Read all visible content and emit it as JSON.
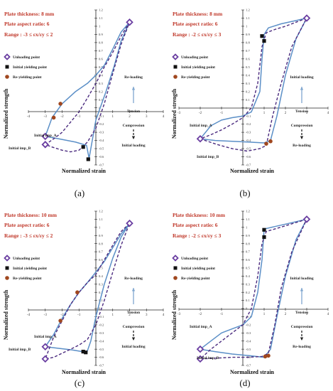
{
  "colors": {
    "solid": "#5b8fc7",
    "dashed": "#4b2b7f",
    "unload_marker": "#6a3ea1",
    "yield_marker": "#111111",
    "reyield_marker": "#a0471f",
    "info_text": "#c0392b",
    "axis": "#222222",
    "arrow": "#7fa6cf"
  },
  "chart_data": [
    {
      "type": "line",
      "panel_label": "(a)",
      "info": {
        "thickness": "Plate thickness: 8 mm",
        "aspect": "Plate aspect ratio: 6",
        "range": "Range : -3 ≤ εx/εy ≤ 2"
      },
      "xlabel": "Normalized strain",
      "ylabel": "Normalized strength",
      "xlim": [
        -4,
        4
      ],
      "ylim": [
        -0.7,
        1.2
      ],
      "xticks": [
        -4,
        -3,
        -2,
        -1,
        0,
        1,
        2,
        3,
        4
      ],
      "yticks": [
        -0.7,
        -0.6,
        -0.5,
        -0.4,
        -0.3,
        -0.2,
        -0.1,
        0,
        0.1,
        0.2,
        0.3,
        0.4,
        0.5,
        0.6,
        0.7,
        0.8,
        0.9,
        1,
        1.1,
        1.2
      ],
      "legend": [
        "Unloading point",
        "Initial yielding point",
        "Re-yielding point"
      ],
      "legend_position": "left",
      "series": [
        {
          "style": "solid",
          "x": [
            2,
            1.5,
            1,
            0.5,
            0,
            -0.5,
            -1.2,
            -2,
            -2.6,
            -3,
            -2.2,
            -1.2,
            -0.55,
            -0.4,
            0,
            0.6,
            1.1,
            1.5,
            2
          ],
          "y": [
            1.05,
            0.93,
            0.72,
            0.52,
            0.4,
            0.3,
            0.2,
            0.05,
            -0.12,
            -0.35,
            -0.38,
            -0.42,
            -0.46,
            -0.62,
            -0.15,
            0.2,
            0.52,
            0.82,
            1.05
          ]
        },
        {
          "style": "dashed",
          "x": [
            2,
            1.5,
            1,
            0.5,
            0,
            -0.5,
            -1,
            -1.6,
            -2,
            -2.5,
            -3,
            -2.6,
            -2,
            -1.5,
            -1,
            -0.5,
            0,
            0.5,
            1,
            1.5,
            2
          ],
          "y": [
            1.05,
            0.88,
            0.68,
            0.5,
            0.3,
            0.12,
            -0.05,
            -0.2,
            -0.3,
            -0.38,
            -0.45,
            -0.48,
            -0.52,
            -0.54,
            -0.52,
            -0.42,
            -0.25,
            0.05,
            0.42,
            0.78,
            1.05
          ]
        }
      ],
      "unloading_points": [
        {
          "x": 2,
          "y": 1.05
        },
        {
          "x": -3,
          "y": -0.35
        },
        {
          "x": -3,
          "y": -0.45
        }
      ],
      "initial_yielding_points": [
        {
          "x": -0.75,
          "y": -0.48
        },
        {
          "x": -0.45,
          "y": -0.63
        }
      ],
      "reyielding_points": [
        {
          "x": -2.5,
          "y": -0.12
        },
        {
          "x": -2.1,
          "y": 0.05
        }
      ],
      "annotations": {
        "imp_a": "Initial imp_A",
        "imp_b": "Initial imp_B",
        "reloading": "Re-loading",
        "tension": "Tension",
        "compression": "Compression",
        "initial_loading": "Initial loading"
      }
    },
    {
      "type": "line",
      "panel_label": "(b)",
      "info": {
        "thickness": "Plate thickness: 8 mm",
        "aspect": "Plate aspect ratio: 6",
        "range": "Range : -2 ≤ εx/εy ≤ 3"
      },
      "xlabel": "Normalized strain",
      "ylabel": "Normalized strength",
      "xlim": [
        -3,
        4
      ],
      "ylim": [
        -0.7,
        1.2
      ],
      "xticks": [
        -3,
        -2,
        -1,
        0,
        1,
        2,
        3,
        4
      ],
      "yticks": [
        -0.7,
        -0.6,
        -0.5,
        -0.4,
        -0.3,
        -0.2,
        -0.1,
        0,
        0.1,
        0.2,
        0.3,
        0.4,
        0.5,
        0.6,
        0.7,
        0.8,
        0.9,
        1,
        1.1,
        1.2
      ],
      "legend": [
        "Unloading point",
        "Initial yielding point",
        "Re-yielding point"
      ],
      "legend_position": "left",
      "series": [
        {
          "style": "solid",
          "x": [
            3,
            2.5,
            1.8,
            1.2,
            1.0,
            0.9,
            0.8,
            0.4,
            0,
            -0.5,
            -1,
            -1.5,
            -2,
            -1.3,
            -0.5,
            0.3,
            1.0,
            1.3,
            1.6,
            2,
            2.5,
            3
          ],
          "y": [
            1.1,
            1.07,
            1.03,
            0.98,
            0.9,
            0.6,
            0.2,
            -0.05,
            -0.1,
            -0.12,
            -0.15,
            -0.22,
            -0.38,
            -0.4,
            -0.41,
            -0.42,
            -0.43,
            -0.4,
            -0.1,
            0.4,
            0.85,
            1.1
          ]
        },
        {
          "style": "dashed",
          "x": [
            3,
            2.5,
            2,
            1.5,
            1.1,
            0.9,
            0.7,
            0.4,
            0,
            -0.5,
            -1,
            -1.5,
            -2,
            -1.2,
            -0.5,
            0.2,
            0.8,
            1.1,
            1.4,
            1.8,
            2.3,
            3
          ],
          "y": [
            1.1,
            1.05,
            1.0,
            0.96,
            0.92,
            0.75,
            0.3,
            0.0,
            -0.12,
            -0.2,
            -0.27,
            -0.33,
            -0.38,
            -0.45,
            -0.5,
            -0.53,
            -0.5,
            -0.46,
            -0.1,
            0.3,
            0.75,
            1.1
          ]
        }
      ],
      "unloading_points": [
        {
          "x": 3,
          "y": 1.1
        },
        {
          "x": -2,
          "y": -0.38
        }
      ],
      "initial_yielding_points": [
        {
          "x": 0.9,
          "y": 0.88
        },
        {
          "x": 1.0,
          "y": 0.82
        }
      ],
      "reyielding_points": [
        {
          "x": 1.1,
          "y": -0.44
        },
        {
          "x": 1.3,
          "y": -0.41
        }
      ],
      "annotations": {
        "imp_a": "Initial imp_A",
        "imp_b": "Initial imp_B",
        "reloading": "Initial loading",
        "tension": "Tension",
        "compression": "Compression",
        "initial_loading": "Re-loading"
      }
    },
    {
      "type": "line",
      "panel_label": "(c)",
      "info": {
        "thickness": "Plate thickness: 10 mm",
        "aspect": "Plate aspect ratio: 6",
        "range": "Range : -3 ≤ εx/εy ≤ 2"
      },
      "xlabel": "Normalized strain",
      "ylabel": "Normalized strength",
      "xlim": [
        -4,
        4
      ],
      "ylim": [
        -0.7,
        1.2
      ],
      "xticks": [
        -4,
        -3,
        -2,
        -1,
        0,
        1,
        2,
        3,
        4
      ],
      "yticks": [
        -0.7,
        -0.6,
        -0.5,
        -0.4,
        -0.3,
        -0.2,
        -0.1,
        0,
        0.1,
        0.2,
        0.3,
        0.4,
        0.5,
        0.6,
        0.7,
        0.8,
        0.9,
        1,
        1.1,
        1.2
      ],
      "legend": [
        "Unloading point",
        "Initial yielding point",
        "Re-yielding point"
      ],
      "legend_position": "left",
      "series": [
        {
          "style": "solid",
          "x": [
            2,
            1.5,
            1,
            0.5,
            0,
            -0.5,
            -1,
            -1.5,
            -2,
            -2.5,
            -3,
            -2.2,
            -1.4,
            -0.8,
            -0.55,
            -0.3,
            0,
            0.5,
            1,
            1.5,
            2
          ],
          "y": [
            1.05,
            0.92,
            0.75,
            0.58,
            0.45,
            0.32,
            0.2,
            0.05,
            -0.12,
            -0.32,
            -0.47,
            -0.49,
            -0.51,
            -0.53,
            -0.55,
            -0.4,
            -0.1,
            0.3,
            0.62,
            0.88,
            1.05
          ]
        },
        {
          "style": "dashed",
          "x": [
            2,
            1.5,
            1,
            0.5,
            0,
            -0.5,
            -1,
            -1.5,
            -2,
            -2.5,
            -3,
            -2.5,
            -2,
            -1.5,
            -1,
            -0.5,
            0,
            0.5,
            1,
            1.5,
            2
          ],
          "y": [
            1.05,
            0.95,
            0.78,
            0.6,
            0.42,
            0.32,
            0.2,
            0.05,
            -0.15,
            -0.35,
            -0.62,
            -0.6,
            -0.55,
            -0.5,
            -0.45,
            -0.38,
            -0.2,
            0.1,
            0.45,
            0.78,
            1.05
          ]
        }
      ],
      "unloading_points": [
        {
          "x": 2,
          "y": 1.05
        },
        {
          "x": -3,
          "y": -0.47
        },
        {
          "x": -3,
          "y": -0.62
        }
      ],
      "initial_yielding_points": [
        {
          "x": -0.75,
          "y": -0.53
        },
        {
          "x": -0.6,
          "y": -0.54
        }
      ],
      "reyielding_points": [
        {
          "x": -2.1,
          "y": -0.15
        },
        {
          "x": -1.1,
          "y": 0.2
        }
      ],
      "annotations": {
        "imp_a": "Initial imp_A",
        "imp_b": "Initial imp_B",
        "reloading": "Re-loading",
        "tension": "Tension",
        "compression": "Compression",
        "initial_loading": "Initial loading"
      }
    },
    {
      "type": "line",
      "panel_label": "(d)",
      "info": {
        "thickness": "Plate thickness: 10 mm",
        "aspect": "Plate aspect ratio: 6",
        "range": "Range : -2 ≤ εx/εy ≤ 3"
      },
      "xlabel": "Normalized strain",
      "ylabel": "Normalized strength",
      "xlim": [
        -3,
        4
      ],
      "ylim": [
        -0.7,
        1.2
      ],
      "xticks": [
        -3,
        -2,
        -1,
        0,
        1,
        2,
        3,
        4
      ],
      "yticks": [
        -0.7,
        -0.6,
        -0.5,
        -0.4,
        -0.3,
        -0.2,
        -0.1,
        0,
        0.1,
        0.2,
        0.3,
        0.4,
        0.5,
        0.6,
        0.7,
        0.8,
        0.9,
        1,
        1.1,
        1.2
      ],
      "legend": [
        "Unloading point",
        "Initial yielding point",
        "Re-yielding point"
      ],
      "legend_position": "left",
      "series": [
        {
          "style": "solid",
          "x": [
            3,
            2.5,
            2,
            1.5,
            1.0,
            0.9,
            0.7,
            0.4,
            0,
            -0.5,
            -1,
            -1.5,
            -2,
            -1.3,
            -0.5,
            0.3,
            1.0,
            1.3,
            1.6,
            2,
            2.5,
            3
          ],
          "y": [
            1.1,
            1.07,
            1.04,
            1.01,
            0.98,
            0.6,
            0.2,
            -0.1,
            -0.2,
            -0.25,
            -0.3,
            -0.4,
            -0.5,
            -0.53,
            -0.56,
            -0.58,
            -0.6,
            -0.5,
            -0.1,
            0.4,
            0.85,
            1.1
          ]
        },
        {
          "style": "dashed",
          "x": [
            3,
            2.5,
            2,
            1.5,
            1.1,
            0.9,
            0.7,
            0.4,
            0,
            -0.5,
            -1,
            -1.5,
            -2,
            -1.2,
            -0.5,
            0.2,
            0.9,
            1.2,
            1.5,
            1.8,
            2.3,
            3
          ],
          "y": [
            1.1,
            1.06,
            1.02,
            0.98,
            0.95,
            0.8,
            0.4,
            0.0,
            -0.2,
            -0.3,
            -0.4,
            -0.5,
            -0.62,
            -0.61,
            -0.6,
            -0.6,
            -0.59,
            -0.55,
            -0.2,
            0.25,
            0.7,
            1.1
          ]
        }
      ],
      "unloading_points": [
        {
          "x": 3,
          "y": 1.1
        },
        {
          "x": -2,
          "y": -0.5
        },
        {
          "x": -2,
          "y": -0.62
        }
      ],
      "initial_yielding_points": [
        {
          "x": 1.0,
          "y": 0.97
        },
        {
          "x": 1.0,
          "y": 0.88
        }
      ],
      "reyielding_points": [
        {
          "x": 1.05,
          "y": -0.59
        },
        {
          "x": 1.2,
          "y": -0.58
        }
      ],
      "annotations": {
        "imp_a": "Initial imp_A",
        "imp_b": "Initial imp_B",
        "reloading": "Initial loading",
        "tension": "Tension",
        "compression": "Compression",
        "initial_loading": "Re-loading"
      }
    }
  ]
}
